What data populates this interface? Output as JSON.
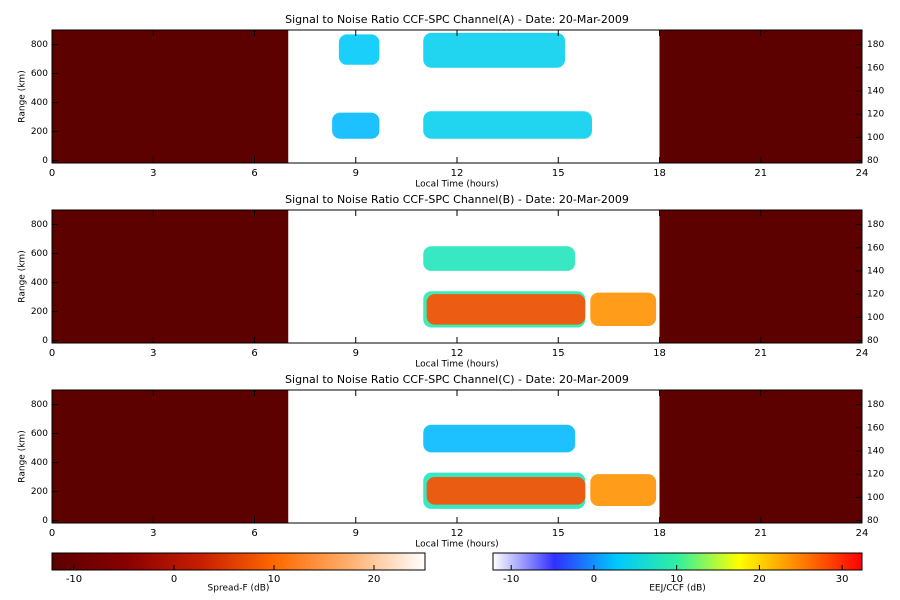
{
  "chart_data": [
    {
      "type": "heatmap",
      "title": "Signal to Noise Ratio CCF-SPC Channel(A) - Date: 20-Mar-2009",
      "xlabel": "Local Time (hours)",
      "ylabel": "Range (km)",
      "xlim": [
        0,
        24
      ],
      "xticks": [
        0,
        3,
        6,
        9,
        12,
        15,
        18,
        21,
        24
      ],
      "ylim": [
        -17,
        900
      ],
      "yticks": [
        0,
        200,
        400,
        600,
        800
      ],
      "y2lim": [
        78,
        192.5
      ],
      "y2ticks": [
        80,
        100,
        120,
        140,
        160,
        180
      ],
      "spread_f_intervals": [
        [
          0,
          7
        ],
        [
          18,
          24
        ]
      ],
      "spread_f_value": -13,
      "echoes": [
        {
          "t": [
            8.5,
            9.7
          ],
          "range": [
            660,
            870
          ],
          "snr": 3
        },
        {
          "t": [
            11,
            15.2
          ],
          "range": [
            640,
            880
          ],
          "snr": 4
        },
        {
          "t": [
            8.3,
            9.7
          ],
          "range": [
            150,
            330
          ],
          "snr": 2
        },
        {
          "t": [
            11,
            16
          ],
          "range": [
            150,
            340
          ],
          "snr": 4
        }
      ]
    },
    {
      "type": "heatmap",
      "title": "Signal to Noise Ratio CCF-SPC Channel(B) - Date: 20-Mar-2009",
      "xlabel": "Local Time (hours)",
      "ylabel": "Range (km)",
      "xlim": [
        0,
        24
      ],
      "xticks": [
        0,
        3,
        6,
        9,
        12,
        15,
        18,
        21,
        24
      ],
      "ylim": [
        -17,
        900
      ],
      "yticks": [
        0,
        200,
        400,
        600,
        800
      ],
      "y2lim": [
        78,
        192.5
      ],
      "y2ticks": [
        80,
        100,
        120,
        140,
        160,
        180
      ],
      "spread_f_intervals": [
        [
          0,
          7
        ],
        [
          18,
          24
        ]
      ],
      "spread_f_value": -13,
      "echoes": [
        {
          "t": [
            11,
            15.5
          ],
          "range": [
            480,
            650
          ],
          "snr": 8
        },
        {
          "t": [
            11,
            15.8
          ],
          "range": [
            90,
            340
          ],
          "snr": 9
        },
        {
          "t": [
            11.1,
            15.8
          ],
          "range": [
            110,
            320
          ],
          "snr": 28
        },
        {
          "t": [
            15.95,
            17.9
          ],
          "range": [
            100,
            330
          ],
          "snr": 24
        }
      ]
    },
    {
      "type": "heatmap",
      "title": "Signal to Noise Ratio CCF-SPC Channel(C) - Date: 20-Mar-2009",
      "xlabel": "Local Time (hours)",
      "ylabel": "Range (km)",
      "xlim": [
        0,
        24
      ],
      "xticks": [
        0,
        3,
        6,
        9,
        12,
        15,
        18,
        21,
        24
      ],
      "ylim": [
        -17,
        900
      ],
      "yticks": [
        0,
        200,
        400,
        600,
        800
      ],
      "y2lim": [
        78,
        192.5
      ],
      "y2ticks": [
        80,
        100,
        120,
        140,
        160,
        180
      ],
      "spread_f_intervals": [
        [
          0,
          7
        ],
        [
          18,
          24
        ]
      ],
      "spread_f_value": -13,
      "echoes": [
        {
          "t": [
            11,
            15.5
          ],
          "range": [
            470,
            660
          ],
          "snr": 2
        },
        {
          "t": [
            11,
            15.8
          ],
          "range": [
            80,
            330
          ],
          "snr": 8
        },
        {
          "t": [
            11.1,
            15.8
          ],
          "range": [
            110,
            300
          ],
          "snr": 28
        },
        {
          "t": [
            15.95,
            17.9
          ],
          "range": [
            100,
            320
          ],
          "snr": 24
        }
      ]
    },
    {
      "type": "colorbar",
      "label": "Spread-F (dB)",
      "xlim": [
        -12.2,
        25.1
      ],
      "xticks": [
        -10,
        0,
        10,
        20
      ],
      "colors": [
        "#5c0000",
        "#8a0000",
        "#c81e00",
        "#ff6a00",
        "#ffb070",
        "#ffffff"
      ]
    },
    {
      "type": "colorbar",
      "label": "EEJ/CCF (dB)",
      "xlim": [
        -12.2,
        32.4
      ],
      "xticks": [
        -10,
        0,
        10,
        20,
        30
      ],
      "colors": [
        "#ffffff",
        "#3030ff",
        "#00c8ff",
        "#30f0a0",
        "#ffff00",
        "#ff8000",
        "#ff0000"
      ]
    }
  ]
}
